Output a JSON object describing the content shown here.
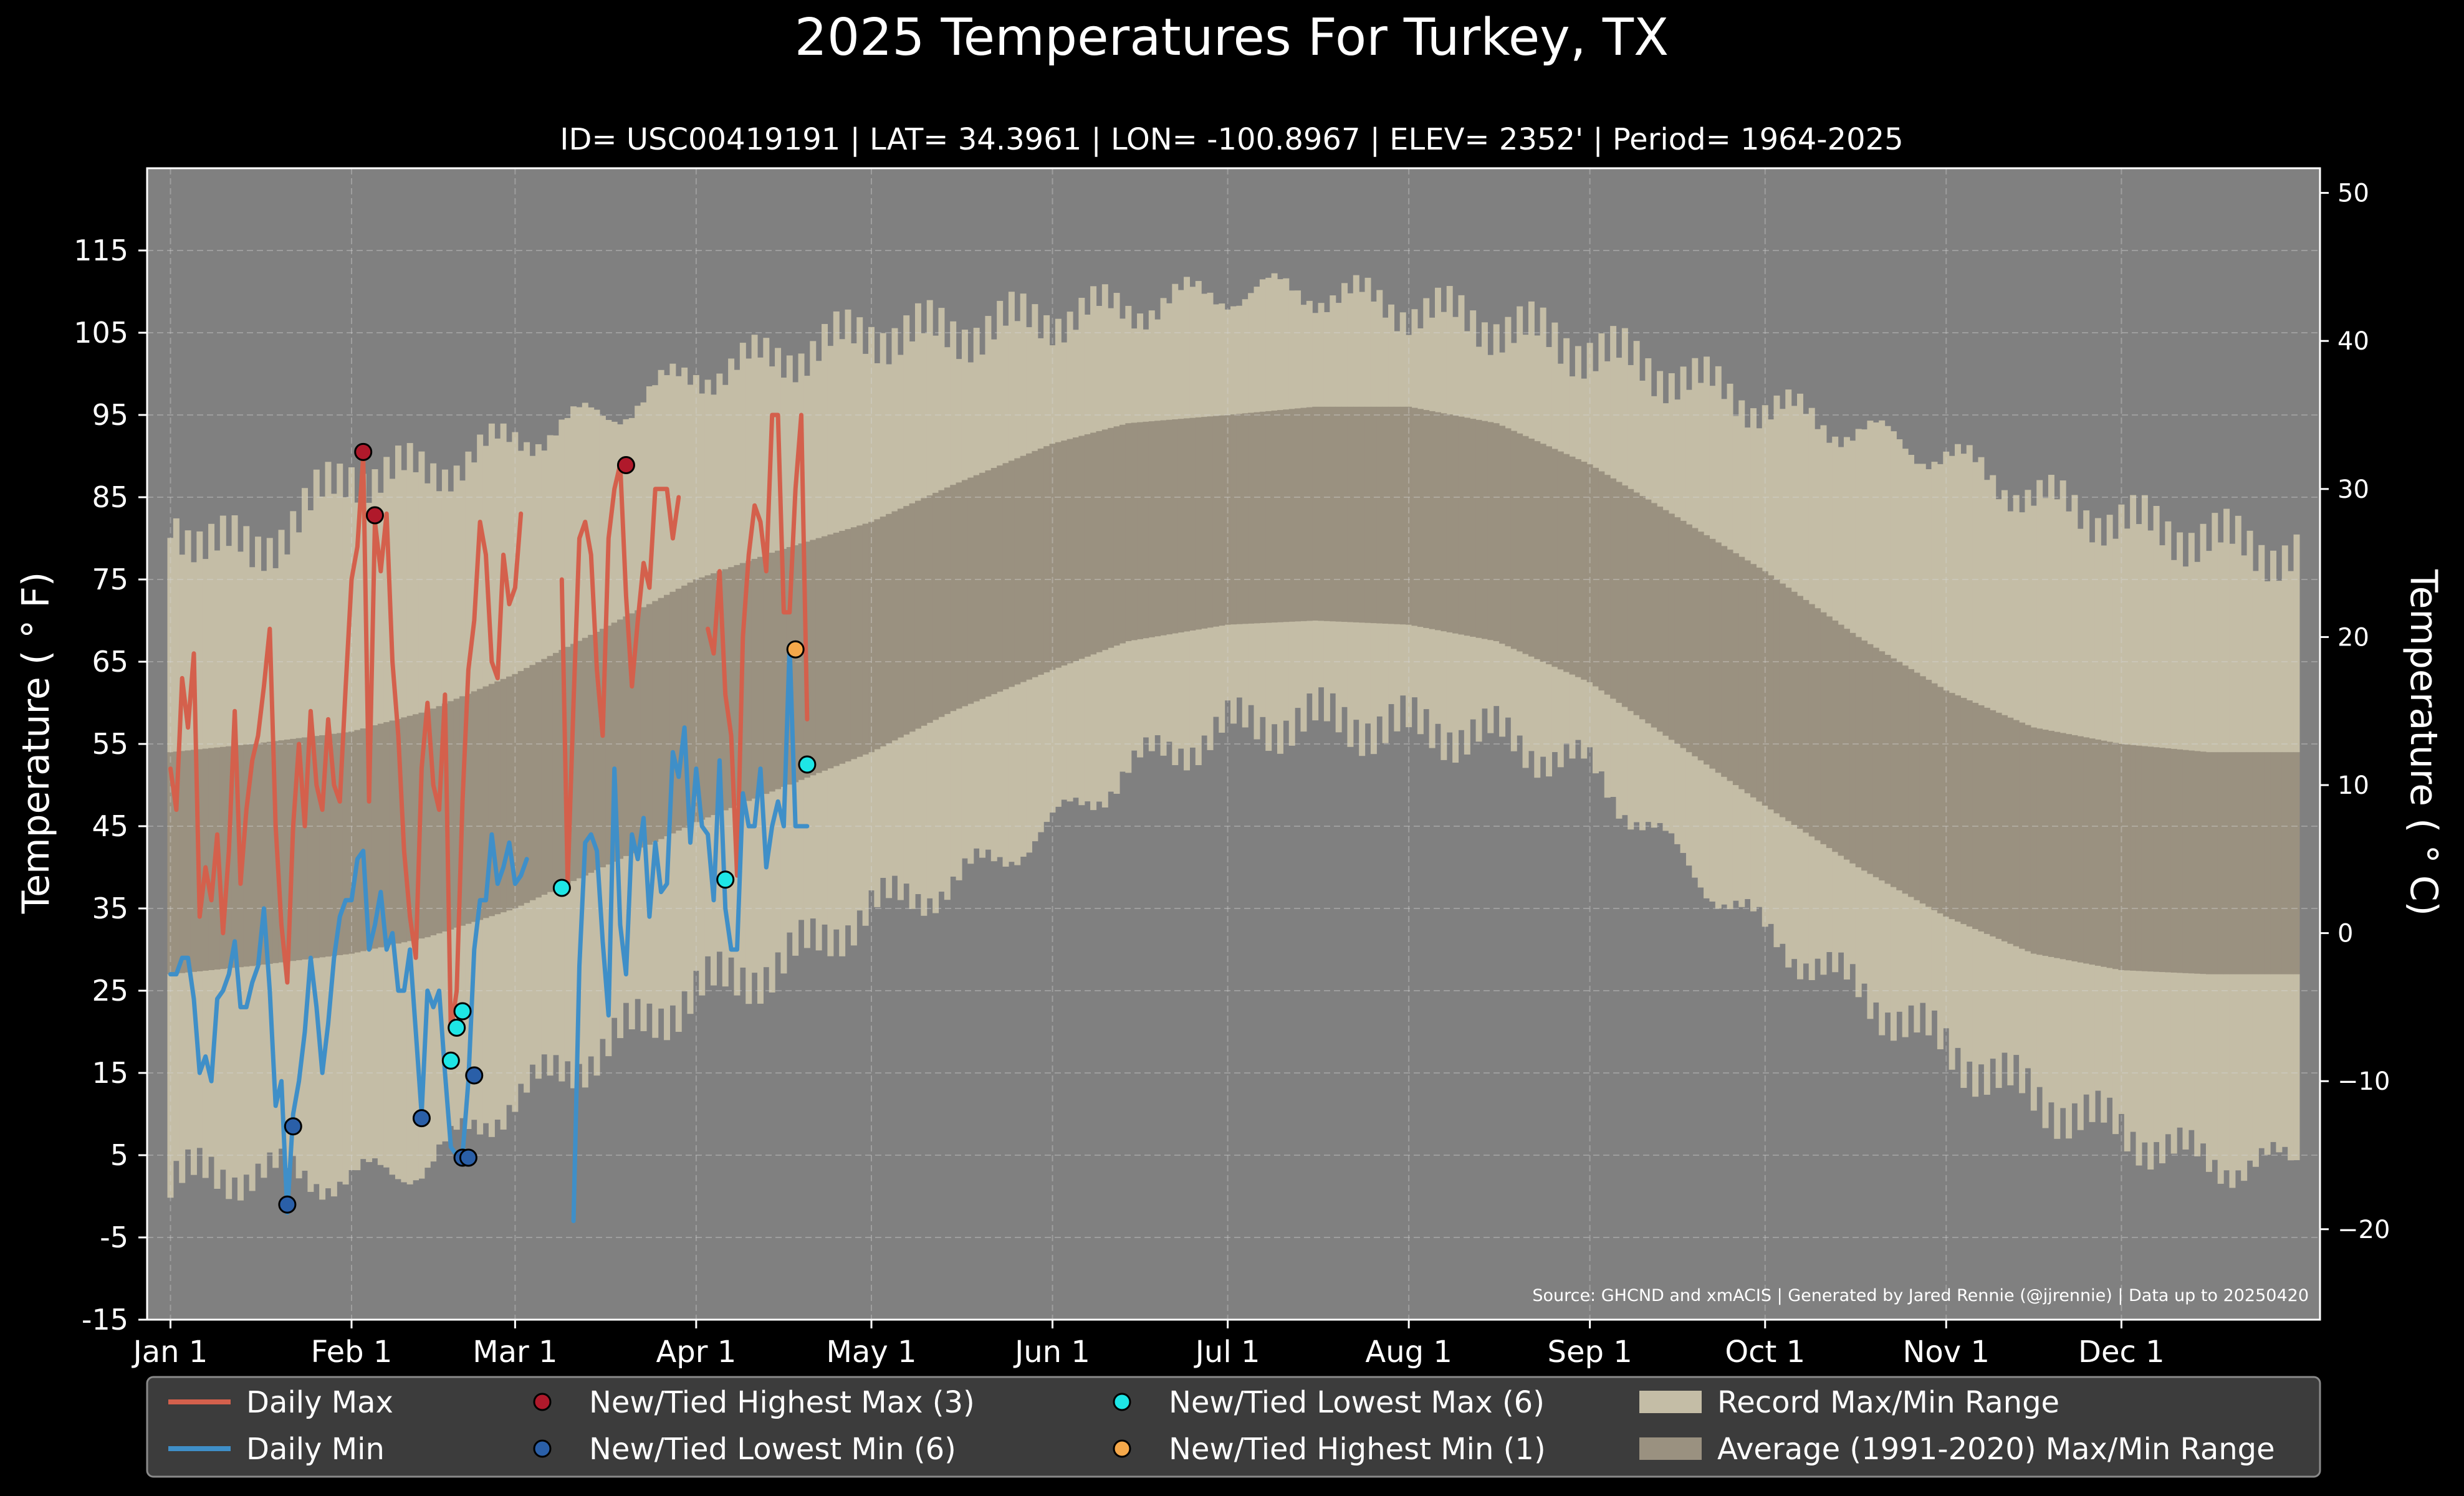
{
  "chart_data": {
    "type": "area",
    "title": "2025 Temperatures For Turkey, TX",
    "subtitle": "ID= USC00419191 | LAT= 34.3961 | LON= -100.8967 | ELEV= 2352' | Period= 1964-2025",
    "ylabel_left": "Temperature ( ° F)",
    "ylabel_right": "Temperature ( ° C)",
    "source": "Source: GHCND and xmACIS | Generated by Jared Rennie (@jjrennie) | Data up to 20250420",
    "ylim_f": [
      -15,
      125
    ],
    "yticks_f": [
      "-15",
      "-5",
      "5",
      "15",
      "25",
      "35",
      "45",
      "55",
      "65",
      "75",
      "85",
      "95",
      "105",
      "115"
    ],
    "yticks_c": [
      "−20",
      "−10",
      "0",
      "10",
      "20",
      "30",
      "40",
      "50"
    ],
    "xlim_doy": [
      -3,
      369
    ],
    "month_ticks": [
      {
        "label": "Jan 1",
        "doy": 1
      },
      {
        "label": "Feb 1",
        "doy": 32
      },
      {
        "label": "Mar 1",
        "doy": 60
      },
      {
        "label": "Apr 1",
        "doy": 91
      },
      {
        "label": "May 1",
        "doy": 121
      },
      {
        "label": "Jun 1",
        "doy": 152
      },
      {
        "label": "Jul 1",
        "doy": 182
      },
      {
        "label": "Aug 1",
        "doy": 213
      },
      {
        "label": "Sep 1",
        "doy": 244
      },
      {
        "label": "Oct 1",
        "doy": 274
      },
      {
        "label": "Nov 1",
        "doy": 305
      },
      {
        "label": "Dec 1",
        "doy": 335
      }
    ],
    "grid": true,
    "legend_position": "bottom",
    "colors": {
      "background": "#000000",
      "plot_bg": "#808080",
      "record_range": "#c4bda6",
      "normal_range": "#9a9180",
      "daily_max": "#d4604c",
      "daily_min": "#3f8fc8",
      "highest_max": "#b0192b",
      "lowest_min": "#2a5fa8",
      "lowest_max": "#1ee6e6",
      "highest_min": "#f5a84a",
      "legend_bg": "#3c3c3c"
    },
    "record_high_anchors": [
      [
        1,
        82
      ],
      [
        15,
        78
      ],
      [
        32,
        88
      ],
      [
        45,
        88
      ],
      [
        60,
        92
      ],
      [
        75,
        95
      ],
      [
        91,
        100
      ],
      [
        105,
        102
      ],
      [
        121,
        105
      ],
      [
        135,
        105
      ],
      [
        152,
        107
      ],
      [
        165,
        108
      ],
      [
        182,
        110
      ],
      [
        197,
        110
      ],
      [
        213,
        108
      ],
      [
        228,
        106
      ],
      [
        244,
        103
      ],
      [
        258,
        100
      ],
      [
        274,
        96
      ],
      [
        290,
        93
      ],
      [
        305,
        90
      ],
      [
        320,
        85
      ],
      [
        335,
        82
      ],
      [
        350,
        80
      ],
      [
        365,
        78
      ]
    ],
    "record_low_anchors": [
      [
        1,
        2
      ],
      [
        15,
        3
      ],
      [
        32,
        2
      ],
      [
        45,
        4
      ],
      [
        60,
        12
      ],
      [
        75,
        18
      ],
      [
        91,
        25
      ],
      [
        105,
        28
      ],
      [
        121,
        35
      ],
      [
        135,
        38
      ],
      [
        152,
        45
      ],
      [
        165,
        52
      ],
      [
        182,
        57
      ],
      [
        197,
        58
      ],
      [
        213,
        57
      ],
      [
        228,
        56
      ],
      [
        244,
        52
      ],
      [
        258,
        42
      ],
      [
        274,
        32
      ],
      [
        290,
        25
      ],
      [
        305,
        18
      ],
      [
        320,
        12
      ],
      [
        335,
        8
      ],
      [
        350,
        4
      ],
      [
        365,
        4
      ]
    ],
    "normal_high_anchors": [
      [
        1,
        54
      ],
      [
        15,
        55
      ],
      [
        32,
        56.5
      ],
      [
        45,
        59
      ],
      [
        60,
        63.5
      ],
      [
        75,
        69
      ],
      [
        91,
        75
      ],
      [
        105,
        78.5
      ],
      [
        121,
        82
      ],
      [
        135,
        86.5
      ],
      [
        152,
        91.5
      ],
      [
        165,
        94
      ],
      [
        182,
        95
      ],
      [
        197,
        96
      ],
      [
        213,
        96
      ],
      [
        228,
        94
      ],
      [
        244,
        89
      ],
      [
        258,
        83
      ],
      [
        274,
        76
      ],
      [
        290,
        68
      ],
      [
        305,
        61.5
      ],
      [
        320,
        57
      ],
      [
        335,
        55
      ],
      [
        350,
        54
      ],
      [
        365,
        54
      ]
    ],
    "normal_low_anchors": [
      [
        1,
        27
      ],
      [
        15,
        28
      ],
      [
        32,
        29.5
      ],
      [
        45,
        31.5
      ],
      [
        60,
        35
      ],
      [
        75,
        40
      ],
      [
        91,
        45.5
      ],
      [
        105,
        49.5
      ],
      [
        121,
        54
      ],
      [
        135,
        59
      ],
      [
        152,
        64
      ],
      [
        165,
        67.5
      ],
      [
        182,
        69.5
      ],
      [
        197,
        70
      ],
      [
        213,
        69.5
      ],
      [
        228,
        67.5
      ],
      [
        244,
        62.5
      ],
      [
        258,
        55.5
      ],
      [
        274,
        47.5
      ],
      [
        290,
        40
      ],
      [
        305,
        34
      ],
      [
        320,
        29.5
      ],
      [
        335,
        27.5
      ],
      [
        350,
        27
      ],
      [
        365,
        27
      ]
    ],
    "series": [
      {
        "name": "Daily Max",
        "x": [
          1,
          2,
          3,
          4,
          5,
          6,
          7,
          8,
          9,
          10,
          11,
          12,
          13,
          14,
          15,
          16,
          17,
          18,
          19,
          20,
          21,
          22,
          23,
          24,
          25,
          26,
          27,
          28,
          29,
          30,
          31,
          32,
          33,
          34,
          35,
          36,
          37,
          38,
          39,
          40,
          41,
          42,
          43,
          44,
          45,
          46,
          47,
          48,
          49,
          50,
          51,
          52,
          53,
          54,
          55,
          56,
          57,
          58,
          59,
          60,
          61,
          62,
          63,
          64,
          65,
          66,
          67,
          68,
          69,
          70,
          71,
          72,
          73,
          74,
          75,
          76,
          77,
          78,
          79,
          80,
          81,
          82,
          83,
          84,
          85,
          86,
          87,
          88,
          89,
          90,
          91,
          92,
          93,
          94,
          95,
          96,
          97,
          98,
          99,
          100,
          101,
          102,
          103,
          104,
          105,
          106,
          107,
          108,
          109,
          110
        ],
        "values": [
          52,
          47,
          63,
          57,
          66,
          34,
          40,
          36,
          44,
          32,
          42,
          59,
          38,
          47,
          53,
          56,
          62,
          69,
          45,
          33,
          26,
          45,
          55,
          45,
          59,
          50,
          47,
          58,
          50,
          48,
          62,
          75,
          79,
          90,
          48,
          82,
          76,
          83,
          65,
          56,
          42,
          34,
          29,
          52,
          60,
          50,
          47,
          61,
          20,
          25,
          48,
          64,
          70,
          82,
          78,
          65,
          63,
          78,
          72,
          74,
          83,
          null,
          null,
          null,
          null,
          null,
          null,
          75,
          38,
          60,
          80,
          82,
          78,
          64,
          56,
          80,
          86,
          89,
          73,
          62,
          70,
          77,
          74,
          86,
          86,
          86,
          80,
          85,
          null,
          null,
          null,
          null,
          69,
          66,
          76,
          61,
          56,
          39,
          68,
          78,
          84,
          82,
          76,
          95,
          95,
          71,
          71,
          86,
          95,
          58
        ],
        "color": "#d4604c"
      },
      {
        "name": "Daily Min",
        "x": [
          1,
          2,
          3,
          4,
          5,
          6,
          7,
          8,
          9,
          10,
          11,
          12,
          13,
          14,
          15,
          16,
          17,
          18,
          19,
          20,
          21,
          22,
          23,
          24,
          25,
          26,
          27,
          28,
          29,
          30,
          31,
          32,
          33,
          34,
          35,
          36,
          37,
          38,
          39,
          40,
          41,
          42,
          43,
          44,
          45,
          46,
          47,
          48,
          49,
          50,
          51,
          52,
          53,
          54,
          55,
          56,
          57,
          58,
          59,
          60,
          61,
          62,
          63,
          64,
          65,
          66,
          67,
          68,
          69,
          70,
          71,
          72,
          73,
          74,
          75,
          76,
          77,
          78,
          79,
          80,
          81,
          82,
          83,
          84,
          85,
          86,
          87,
          88,
          89,
          90,
          91,
          92,
          93,
          94,
          95,
          96,
          97,
          98,
          99,
          100,
          101,
          102,
          103,
          104,
          105,
          106,
          107,
          108,
          109,
          110
        ],
        "values": [
          27,
          27,
          29,
          29,
          24,
          15,
          17,
          14,
          24,
          25,
          27,
          31,
          23,
          23,
          26,
          28,
          35,
          25,
          11,
          14,
          -2,
          10,
          14,
          20,
          29,
          23,
          15,
          21,
          29,
          34,
          36,
          36,
          41,
          42,
          30,
          33,
          37,
          30,
          32,
          25,
          25,
          30,
          20,
          10,
          25,
          23,
          25,
          15,
          6,
          5,
          5,
          14,
          30,
          36,
          36,
          44,
          38,
          40,
          43,
          38,
          39,
          41,
          null,
          null,
          null,
          null,
          null,
          null,
          null,
          -3,
          28,
          43,
          44,
          42,
          31,
          22,
          52,
          33,
          27,
          44,
          41,
          46,
          34,
          43,
          37,
          38,
          54,
          51,
          57,
          43,
          52,
          45,
          44,
          36,
          53,
          35,
          30,
          30,
          49,
          45,
          45,
          52,
          40,
          45,
          48,
          45,
          67,
          45,
          45,
          45
        ],
        "color": "#3f8fc8"
      }
    ],
    "records": [
      {
        "name": "New/Tied Highest Max (3)",
        "color": "#b0192b",
        "points": [
          [
            34,
            90.5
          ],
          [
            36,
            82.8
          ],
          [
            79,
            88.9
          ]
        ]
      },
      {
        "name": "New/Tied Lowest Min (6)",
        "color": "#2a5fa8",
        "points": [
          [
            21,
            -1
          ],
          [
            22,
            8.5
          ],
          [
            44,
            9.5
          ],
          [
            51,
            4.7
          ],
          [
            52,
            4.7
          ],
          [
            53,
            14.7
          ]
        ]
      },
      {
        "name": "New/Tied Lowest Max (6)",
        "color": "#1ee6e6",
        "points": [
          [
            49,
            16.5
          ],
          [
            50,
            20.5
          ],
          [
            51,
            22.5
          ],
          [
            68,
            37.5
          ],
          [
            96,
            38.5
          ],
          [
            110,
            52.5
          ]
        ]
      },
      {
        "name": "New/Tied Highest Min (1)",
        "color": "#f5a84a",
        "points": [
          [
            108,
            66.5
          ]
        ]
      }
    ],
    "legend": [
      {
        "label": "Daily Max",
        "kind": "line",
        "color": "#d4604c"
      },
      {
        "label": "Daily Min",
        "kind": "line",
        "color": "#3f8fc8"
      },
      {
        "label": "New/Tied Highest Max (3)",
        "kind": "dot",
        "color": "#b0192b"
      },
      {
        "label": "New/Tied Lowest Min (6)",
        "kind": "dot",
        "color": "#2a5fa8"
      },
      {
        "label": "New/Tied Lowest Max (6)",
        "kind": "dot",
        "color": "#1ee6e6"
      },
      {
        "label": "New/Tied Highest Min (1)",
        "kind": "dot",
        "color": "#f5a84a"
      },
      {
        "label": "Record Max/Min Range",
        "kind": "patch",
        "color": "#c4bda6"
      },
      {
        "label": "Average (1991-2020) Max/Min Range",
        "kind": "patch",
        "color": "#9a9180"
      }
    ]
  }
}
